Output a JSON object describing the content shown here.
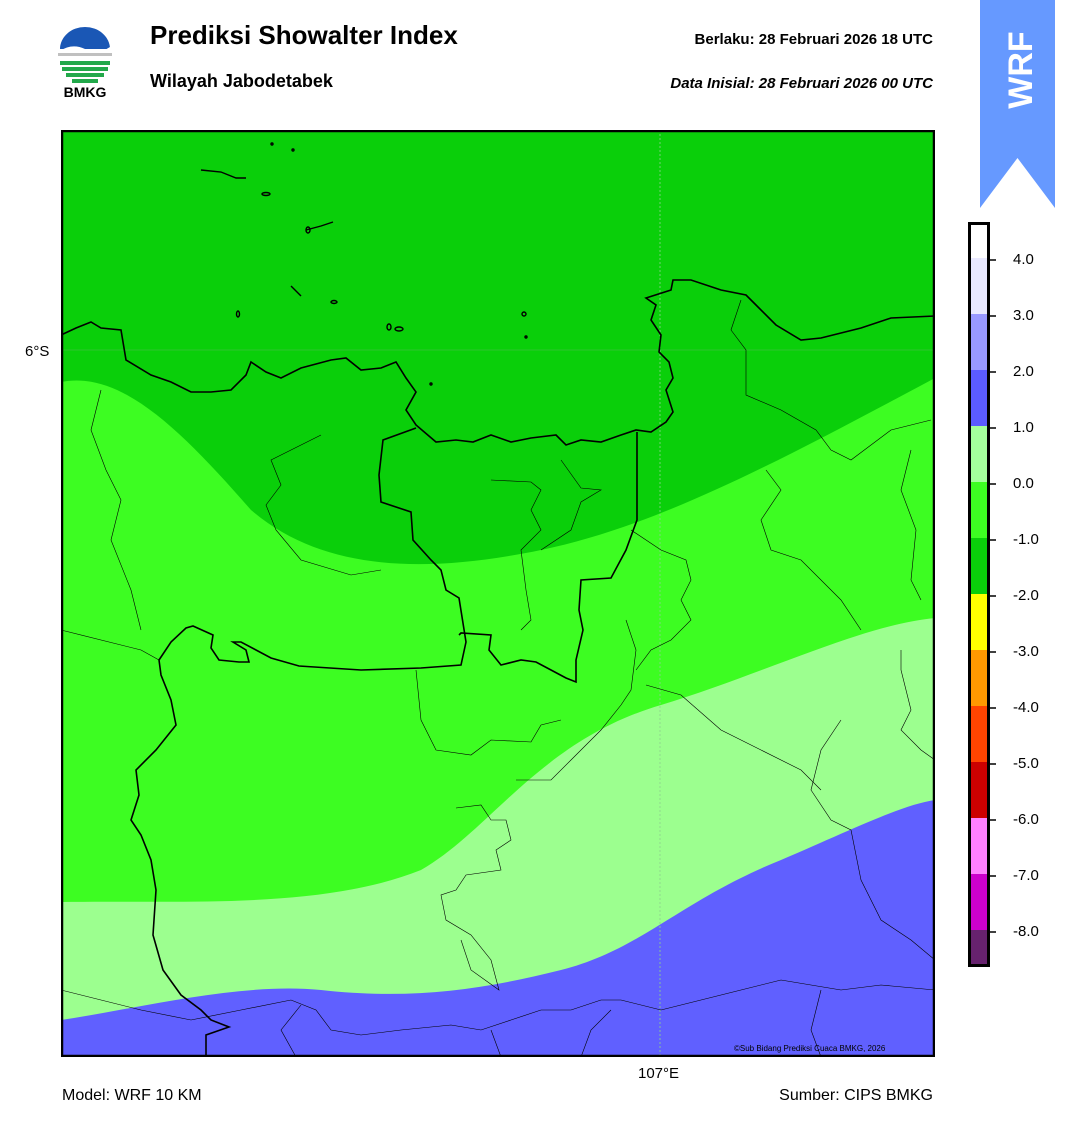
{
  "header": {
    "title": "Prediksi Showalter Index",
    "subtitle": "Wilayah Jabodetabek",
    "valid_label": "Berlaku:  28 Februari 2026 18 UTC",
    "init_label": "Data Inisial:  28 Februari 2026 00 UTC"
  },
  "logo": {
    "text": "BMKG",
    "icon": "bmkg-logo-icon"
  },
  "banner": {
    "text": "WRF",
    "color": "#6699ff"
  },
  "map": {
    "lat_label": "6°S",
    "lon_label": "107°E",
    "copyright": "©Sub Bidang Prediksi Cuaca BMKG, 2026",
    "bands": [
      {
        "range": "-2.0 to -1.0",
        "color": "#0acf0a"
      },
      {
        "range": "-1.0 to 0.0",
        "color": "#3dfd22"
      },
      {
        "range": "0.0 to 1.0",
        "color": "#9cff8f"
      },
      {
        "range": "1.0 to 2.0",
        "color": "#6060ff"
      }
    ]
  },
  "colorbar": {
    "ticks": [
      "4.0",
      "3.0",
      "2.0",
      "1.0",
      "0.0",
      "-1.0",
      "-2.0",
      "-3.0",
      "-4.0",
      "-5.0",
      "-6.0",
      "-7.0",
      "-8.0"
    ],
    "colors_top_to_bottom": [
      "#e9e9ff",
      "#9999ff",
      "#5b5bff",
      "#a4ff9c",
      "#3dfd22",
      "#0acf0a",
      "#ffff00",
      "#ff9900",
      "#ff4400",
      "#cc0000",
      "#ff80ff",
      "#cc00cc",
      "#66226e"
    ]
  },
  "footer": {
    "model": "Model: WRF 10 KM",
    "source": "Sumber: CIPS BMKG"
  }
}
